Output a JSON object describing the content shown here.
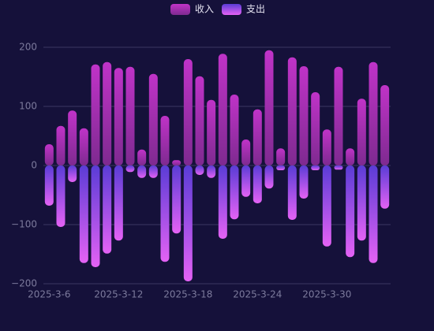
{
  "chart_data": {
    "type": "bar",
    "stacked": true,
    "legend": "top",
    "categories": [
      "2025-3-6",
      null,
      null,
      null,
      null,
      null,
      "2025-3-12",
      null,
      null,
      null,
      null,
      null,
      "2025-3-18",
      null,
      null,
      null,
      null,
      null,
      "2025-3-24",
      null,
      null,
      null,
      null,
      null,
      "2025-3-30",
      null,
      null,
      null,
      null,
      null
    ],
    "series": [
      {
        "name": "收入",
        "color": "#b22fb8",
        "values": [
          36,
          67,
          93,
          63,
          171,
          175,
          165,
          167,
          27,
          155,
          84,
          9,
          180,
          151,
          111,
          189,
          120,
          44,
          95,
          195,
          29,
          183,
          168,
          124,
          61,
          167,
          29,
          113,
          175,
          136
        ]
      },
      {
        "name": "支出",
        "color": "#7d4cf2",
        "values": [
          -68,
          -104,
          -28,
          -165,
          -172,
          -149,
          -127,
          -11,
          -21,
          -21,
          -163,
          -115,
          -196,
          -16,
          -21,
          -124,
          -91,
          -53,
          -64,
          -39,
          -8,
          -92,
          -56,
          -8,
          -137,
          -7,
          -155,
          -127,
          -165,
          -73
        ]
      }
    ],
    "ylim": [
      -200,
      200
    ],
    "yticks": [
      {
        "value": -200,
        "label": "−200"
      },
      {
        "value": -100,
        "label": "−100"
      },
      0,
      100,
      200
    ],
    "grid": true
  }
}
